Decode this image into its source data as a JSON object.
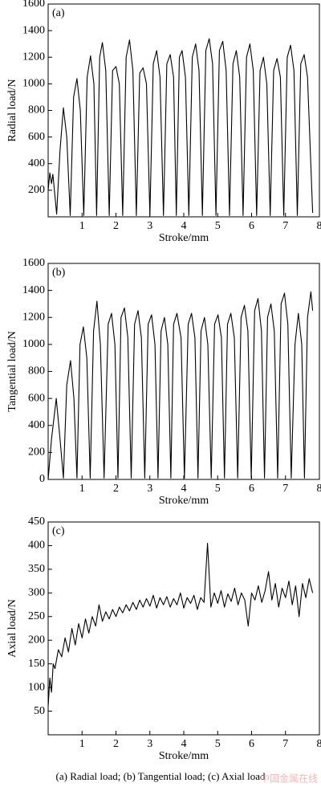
{
  "chart_data": [
    {
      "type": "line",
      "panel_label": "(a)",
      "xlabel": "Stroke/mm",
      "ylabel": "Radial load/N",
      "color": "#000000",
      "xlim": [
        0,
        8
      ],
      "ylim": [
        0,
        1600
      ],
      "xticks": [
        1,
        2,
        3,
        4,
        5,
        6,
        7,
        8
      ],
      "yticks": [
        200,
        400,
        600,
        800,
        1000,
        1200,
        1400,
        1600
      ],
      "x": [
        0,
        0.05,
        0.1,
        0.14,
        0.25,
        0.35,
        0.45,
        0.55,
        0.65,
        0.75,
        0.85,
        0.95,
        1.05,
        1.15,
        1.25,
        1.35,
        1.43,
        1.52,
        1.6,
        1.7,
        1.8,
        1.9,
        2.0,
        2.1,
        2.2,
        2.3,
        2.4,
        2.5,
        2.6,
        2.7,
        2.8,
        2.9,
        3.0,
        3.1,
        3.2,
        3.3,
        3.4,
        3.5,
        3.6,
        3.7,
        3.78,
        3.87,
        3.95,
        4.05,
        4.15,
        4.25,
        4.35,
        4.45,
        4.55,
        4.65,
        4.75,
        4.85,
        4.95,
        5.05,
        5.15,
        5.25,
        5.35,
        5.45,
        5.55,
        5.65,
        5.75,
        5.85,
        5.95,
        6.05,
        6.15,
        6.25,
        6.35,
        6.45,
        6.55,
        6.65,
        6.75,
        6.85,
        6.95,
        7.05,
        7.15,
        7.25,
        7.35,
        7.45,
        7.55,
        7.65,
        7.8
      ],
      "values": [
        200,
        330,
        250,
        320,
        20,
        500,
        820,
        600,
        10,
        900,
        1040,
        800,
        10,
        1050,
        1210,
        1000,
        10,
        1200,
        1310,
        1100,
        10,
        1100,
        1130,
        1000,
        10,
        1200,
        1330,
        1100,
        10,
        1080,
        1120,
        1000,
        10,
        1150,
        1250,
        1050,
        10,
        1150,
        1220,
        1050,
        10,
        1200,
        1250,
        1050,
        10,
        1200,
        1300,
        1100,
        10,
        1250,
        1340,
        1150,
        10,
        1250,
        1320,
        1100,
        10,
        1150,
        1250,
        1050,
        10,
        1200,
        1300,
        1100,
        10,
        1100,
        1200,
        1000,
        10,
        1100,
        1190,
        1050,
        10,
        1200,
        1290,
        1100,
        10,
        1150,
        1220,
        1050,
        30
      ]
    },
    {
      "type": "line",
      "panel_label": "(b)",
      "xlabel": "Stroke/mm",
      "ylabel": "Tangential load/N",
      "color": "#000000",
      "xlim": [
        0,
        8
      ],
      "ylim": [
        0,
        1600
      ],
      "xticks": [
        1,
        2,
        3,
        4,
        5,
        6,
        7,
        8
      ],
      "yticks": [
        0,
        200,
        400,
        600,
        800,
        1000,
        1200,
        1400,
        1600
      ],
      "x": [
        0,
        0.1,
        0.24,
        0.35,
        0.45,
        0.55,
        0.66,
        0.76,
        0.85,
        0.94,
        1.04,
        1.14,
        1.24,
        1.34,
        1.44,
        1.54,
        1.65,
        1.77,
        1.87,
        1.97,
        2.06,
        2.15,
        2.25,
        2.35,
        2.45,
        2.55,
        2.65,
        2.75,
        2.85,
        2.95,
        3.05,
        3.15,
        3.24,
        3.33,
        3.43,
        3.53,
        3.62,
        3.7,
        3.8,
        3.92,
        4.02,
        4.13,
        4.23,
        4.33,
        4.42,
        4.51,
        4.61,
        4.71,
        4.81,
        4.91,
        5.01,
        5.11,
        5.2,
        5.29,
        5.39,
        5.49,
        5.59,
        5.69,
        5.79,
        5.89,
        5.99,
        6.09,
        6.19,
        6.29,
        6.38,
        6.47,
        6.57,
        6.67,
        6.77,
        6.87,
        6.97,
        7.07,
        7.17,
        7.28,
        7.38,
        7.48,
        7.56,
        7.65,
        7.75,
        7.8
      ],
      "values": [
        0,
        300,
        600,
        300,
        10,
        700,
        880,
        600,
        10,
        1000,
        1130,
        900,
        10,
        1100,
        1320,
        1000,
        10,
        1150,
        1230,
        1000,
        10,
        1200,
        1270,
        1050,
        10,
        1150,
        1250,
        1050,
        10,
        1150,
        1220,
        1000,
        10,
        1100,
        1200,
        1000,
        10,
        1150,
        1230,
        1050,
        10,
        1150,
        1230,
        1050,
        10,
        1100,
        1200,
        1000,
        10,
        1150,
        1220,
        1050,
        10,
        1150,
        1230,
        1050,
        10,
        1200,
        1290,
        1100,
        10,
        1250,
        1340,
        1100,
        10,
        1200,
        1300,
        1100,
        10,
        1300,
        1380,
        1150,
        10,
        1000,
        1230,
        1000,
        10,
        1200,
        1390,
        1250
      ]
    },
    {
      "type": "line",
      "panel_label": "(c)",
      "xlabel": "Stroke/mm",
      "ylabel": "Axial load/N",
      "color": "#000000",
      "xlim": [
        0,
        8
      ],
      "ylim": [
        0,
        450
      ],
      "xticks": [
        1,
        2,
        3,
        4,
        5,
        6,
        7,
        8
      ],
      "yticks": [
        50,
        100,
        150,
        200,
        250,
        300,
        350,
        400,
        450
      ],
      "x": [
        0,
        0.05,
        0.1,
        0.15,
        0.2,
        0.3,
        0.4,
        0.5,
        0.6,
        0.7,
        0.8,
        0.9,
        1.0,
        1.1,
        1.2,
        1.3,
        1.4,
        1.5,
        1.6,
        1.7,
        1.8,
        1.9,
        2.0,
        2.1,
        2.2,
        2.3,
        2.4,
        2.5,
        2.6,
        2.7,
        2.8,
        2.9,
        3.0,
        3.1,
        3.2,
        3.3,
        3.4,
        3.5,
        3.6,
        3.7,
        3.8,
        3.9,
        4.0,
        4.1,
        4.2,
        4.3,
        4.4,
        4.5,
        4.6,
        4.7,
        4.8,
        4.9,
        5.0,
        5.1,
        5.2,
        5.3,
        5.4,
        5.5,
        5.6,
        5.7,
        5.8,
        5.9,
        6.0,
        6.1,
        6.2,
        6.3,
        6.4,
        6.5,
        6.6,
        6.7,
        6.8,
        6.9,
        7.0,
        7.1,
        7.2,
        7.3,
        7.4,
        7.5,
        7.6,
        7.7,
        7.8
      ],
      "values": [
        60,
        120,
        90,
        150,
        140,
        180,
        165,
        205,
        175,
        225,
        190,
        235,
        205,
        245,
        215,
        250,
        230,
        275,
        240,
        260,
        245,
        265,
        250,
        270,
        258,
        275,
        262,
        280,
        265,
        285,
        270,
        288,
        272,
        295,
        268,
        290,
        275,
        292,
        270,
        288,
        275,
        300,
        268,
        290,
        278,
        295,
        265,
        290,
        280,
        405,
        270,
        300,
        278,
        305,
        270,
        298,
        282,
        310,
        275,
        300,
        285,
        230,
        300,
        285,
        315,
        280,
        305,
        345,
        285,
        320,
        270,
        310,
        290,
        325,
        275,
        315,
        250,
        320,
        290,
        330,
        300
      ]
    }
  ],
  "caption": "(a) Radial load; (b) Tangential load; (c) Axial load",
  "watermark": "中国金属在线"
}
